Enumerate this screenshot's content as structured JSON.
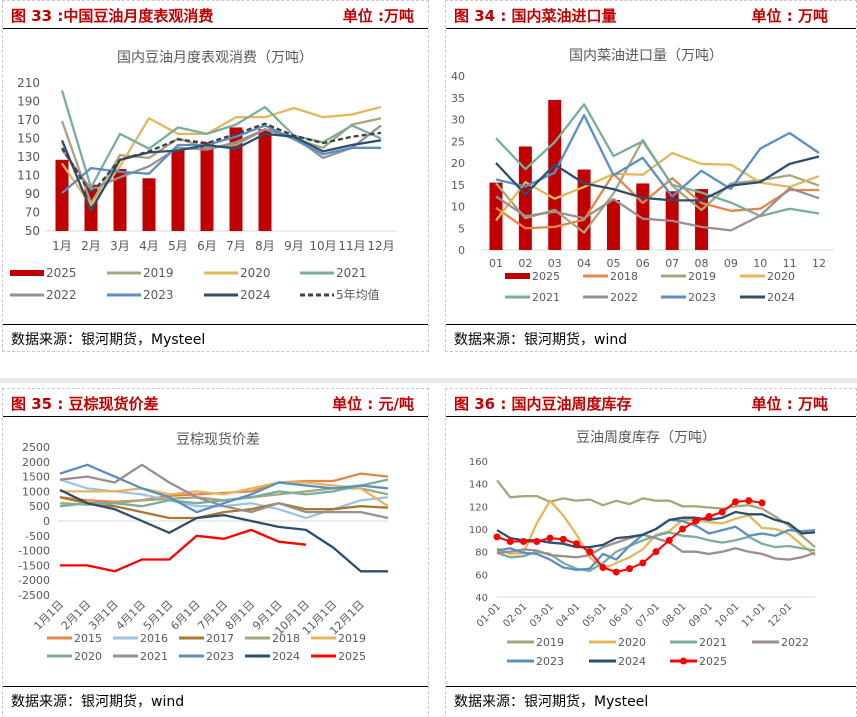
{
  "panels": [
    {
      "title": "图 33 :中国豆油月度表观消费",
      "unit": "单位 :万吨",
      "source": "数据来源：银河期货，Mysteel"
    },
    {
      "title": "图 34 : 国内菜油进口量",
      "unit": "单位 : 万吨",
      "source": "数据来源：银河期货，wind"
    },
    {
      "title": "图 35 : 豆棕现货价差",
      "unit": "单位 : 元/吨",
      "source": "数据来源：银河期货，wind"
    },
    {
      "title": "图 36 : 国内豆油周度库存",
      "unit": "单位 : 万吨",
      "source": "数据来源：银河期货，Mysteel"
    }
  ],
  "chart_data": [
    {
      "type": "bar+line",
      "title": "国内豆油月度表观消费（万吨）",
      "ylim": [
        50,
        210
      ],
      "yticks": [
        50,
        70,
        90,
        110,
        130,
        150,
        170,
        190,
        210
      ],
      "categories": [
        "1月",
        "2月",
        "3月",
        "4月",
        "5月",
        "6月",
        "7月",
        "8月",
        "9月",
        "10月",
        "11月",
        "12月"
      ],
      "series": [
        {
          "name": "2025",
          "kind": "bar",
          "color": "#c00000",
          "values": [
            127,
            100,
            117,
            107,
            137,
            146,
            162,
            160,
            null,
            null,
            null,
            null
          ]
        },
        {
          "name": "2019",
          "color": "#a5a77a",
          "values": [
            169,
            80,
            132,
            129,
            150,
            140,
            143,
            160,
            150,
            140,
            165,
            172
          ]
        },
        {
          "name": "2020",
          "color": "#e3b75a",
          "values": [
            123,
            78,
            120,
            172,
            155,
            155,
            173,
            173,
            183,
            173,
            176,
            184
          ]
        },
        {
          "name": "2021",
          "color": "#79ae9c",
          "values": [
            202,
            97,
            155,
            139,
            162,
            155,
            165,
            184,
            153,
            146,
            164,
            150
          ]
        },
        {
          "name": "2022",
          "color": "#9b8e8e",
          "values": [
            138,
            95,
            108,
            120,
            140,
            138,
            146,
            160,
            152,
            129,
            140,
            164
          ]
        },
        {
          "name": "2023",
          "color": "#5b8fc4",
          "values": [
            91,
            118,
            114,
            112,
            143,
            143,
            152,
            164,
            149,
            133,
            140,
            140
          ]
        },
        {
          "name": "2024",
          "color": "#2d4e6e",
          "values": [
            148,
            72,
            127,
            135,
            137,
            143,
            139,
            155,
            152,
            136,
            143,
            148
          ]
        },
        {
          "name": "5年均值",
          "color": "#404040",
          "dashed": true,
          "values": [
            140,
            90,
            127,
            136,
            149,
            145,
            155,
            166,
            153,
            145,
            152,
            156
          ]
        }
      ],
      "legend": "bottom",
      "grid": false
    },
    {
      "type": "bar+line",
      "title": "国内菜油进口量（万吨）",
      "ylim": [
        0,
        40
      ],
      "yticks": [
        0,
        5,
        10,
        15,
        20,
        25,
        30,
        35,
        40
      ],
      "categories": [
        "01",
        "02",
        "03",
        "04",
        "05",
        "06",
        "07",
        "08",
        "09",
        "10",
        "11",
        "12"
      ],
      "series": [
        {
          "name": "2025",
          "kind": "bar",
          "color": "#c00000",
          "values": [
            15.5,
            23.8,
            34.5,
            18.5,
            11.5,
            15.3,
            13.5,
            14,
            null,
            null,
            null,
            null
          ]
        },
        {
          "name": "2018",
          "color": "#e8844a",
          "values": [
            9.7,
            5,
            5.3,
            7,
            17.5,
            10.8,
            16.5,
            10.8,
            9,
            9.5,
            13.8,
            13.8
          ]
        },
        {
          "name": "2019",
          "color": "#a5a77a",
          "values": [
            15.3,
            7.3,
            9.2,
            4,
            13,
            25.3,
            14.8,
            9.2,
            15.3,
            16,
            17.2,
            14.8
          ]
        },
        {
          "name": "2020",
          "color": "#e3b75a",
          "values": [
            6.8,
            15.6,
            11.8,
            14.5,
            17.5,
            17.3,
            22.3,
            19.8,
            19.6,
            15.5,
            14.5,
            17
          ]
        },
        {
          "name": "2021",
          "color": "#79ae9c",
          "values": [
            25.7,
            18.6,
            24.8,
            33.5,
            21.6,
            25,
            15,
            13.2,
            10.9,
            7.8,
            9.5,
            8.4
          ]
        },
        {
          "name": "2022",
          "color": "#9b8e8e",
          "values": [
            12.3,
            7.8,
            8.8,
            7.3,
            11.7,
            7.2,
            6.7,
            5.3,
            4.5,
            7.9,
            14.2,
            11.9
          ]
        },
        {
          "name": "2023",
          "color": "#5b8fc4",
          "values": [
            16.2,
            14.6,
            17.8,
            31,
            17.2,
            21.2,
            12.3,
            18.2,
            14,
            23.3,
            26.9,
            22.3
          ]
        },
        {
          "name": "2024",
          "color": "#2d4e6e",
          "values": [
            20,
            12.8,
            19.6,
            15.3,
            14,
            12,
            11.4,
            11.4,
            14.8,
            15.6,
            19.8,
            21.5
          ]
        }
      ],
      "legend": "bottom",
      "grid": false
    },
    {
      "type": "line",
      "title": "豆棕现货价差",
      "ylim": [
        -2500,
        2500
      ],
      "yticks": [
        -2500,
        -2000,
        -1500,
        -1000,
        -500,
        0,
        500,
        1000,
        1500,
        2000,
        2500
      ],
      "xticklabels": [
        "1月1日",
        "2月1日",
        "3月1日",
        "4月1日",
        "5月1日",
        "6月1日",
        "7月1日",
        "8月1日",
        "9月1日",
        "10月1日",
        "11月1日",
        "12月1日"
      ],
      "x": [
        "1月1日",
        "2月1日",
        "3月1日",
        "4月1日",
        "5月1日",
        "6月1日",
        "7月1日",
        "8月1日",
        "9月1日",
        "10月1日",
        "11月1日",
        "12月1日",
        "12月31日"
      ],
      "series": [
        {
          "name": "2015",
          "color": "#e8844a",
          "values": [
            800,
            700,
            650,
            700,
            850,
            900,
            950,
            1000,
            1300,
            1350,
            1350,
            1600,
            1500
          ]
        },
        {
          "name": "2016",
          "color": "#9dc3e6",
          "values": [
            1400,
            1100,
            1000,
            900,
            700,
            500,
            500,
            600,
            400,
            100,
            400,
            700,
            800
          ]
        },
        {
          "name": "2017",
          "color": "#a57a2e",
          "values": [
            800,
            600,
            500,
            300,
            100,
            100,
            300,
            400,
            600,
            400,
            400,
            500,
            450
          ]
        },
        {
          "name": "2018",
          "color": "#a5a77a",
          "values": [
            600,
            550,
            600,
            700,
            750,
            800,
            700,
            800,
            900,
            1000,
            1100,
            1100,
            900
          ]
        },
        {
          "name": "2019",
          "color": "#e3b75a",
          "values": [
            1000,
            1000,
            1000,
            1100,
            900,
            1000,
            900,
            1100,
            1300,
            1300,
            1200,
            1100,
            500
          ]
        },
        {
          "name": "2020",
          "color": "#79ae9c",
          "values": [
            500,
            600,
            600,
            500,
            700,
            600,
            700,
            800,
            1000,
            900,
            1000,
            1200,
            1400
          ]
        },
        {
          "name": "2021",
          "color": "#9b8e8e",
          "values": [
            1400,
            1500,
            1300,
            1900,
            1300,
            800,
            500,
            300,
            600,
            300,
            300,
            300,
            100
          ]
        },
        {
          "name": "2023",
          "color": "#5b8fc4",
          "values": [
            1600,
            1900,
            1500,
            1100,
            800,
            300,
            600,
            900,
            1300,
            1200,
            1100,
            1200,
            1100
          ]
        },
        {
          "name": "2024",
          "color": "#2d4e6e",
          "values": [
            1050,
            600,
            400,
            0,
            -400,
            100,
            200,
            0,
            -200,
            -300,
            -900,
            -1700,
            -1700
          ]
        },
        {
          "name": "2025",
          "color": "#ff0000",
          "values": [
            -1500,
            -1500,
            -1700,
            -1300,
            -1300,
            -500,
            -600,
            -300,
            -700,
            -800,
            null,
            null,
            null
          ]
        }
      ],
      "legend": "bottom",
      "grid": false
    },
    {
      "type": "line",
      "title": "豆油周度库存（万吨）",
      "ylim": [
        40,
        160
      ],
      "yticks": [
        40,
        60,
        80,
        100,
        120,
        140,
        160
      ],
      "xticklabels": [
        "01-01",
        "02-01",
        "03-01",
        "04-01",
        "05-01",
        "06-01",
        "07-01",
        "08-01",
        "09-01",
        "10-01",
        "11-01",
        "12-01"
      ],
      "x": [
        "01-01",
        "01-15",
        "02-01",
        "02-15",
        "03-01",
        "03-15",
        "04-01",
        "04-15",
        "05-01",
        "05-15",
        "06-01",
        "06-15",
        "07-01",
        "07-15",
        "08-01",
        "08-15",
        "09-01",
        "09-15",
        "10-01",
        "10-15",
        "11-01",
        "11-15",
        "12-01",
        "12-15",
        "12-31"
      ],
      "series": [
        {
          "name": "2019",
          "color": "#a5a77a",
          "values": [
            143,
            128,
            129,
            129,
            124,
            127,
            125,
            126,
            121,
            125,
            122,
            127,
            125,
            125,
            120,
            120,
            119,
            118,
            120,
            121,
            118,
            111,
            103,
            94,
            84
          ]
        },
        {
          "name": "2020",
          "color": "#e3b75a",
          "values": [
            83,
            78,
            79,
            105,
            125,
            112,
            95,
            75,
            65,
            70,
            75,
            82,
            95,
            98,
            108,
            108,
            106,
            105,
            109,
            112,
            101,
            100,
            96,
            86,
            77
          ]
        },
        {
          "name": "2021",
          "color": "#79ae9c",
          "values": [
            79,
            75,
            76,
            80,
            78,
            70,
            65,
            63,
            70,
            80,
            85,
            90,
            94,
            97,
            94,
            93,
            90,
            88,
            90,
            93,
            87,
            84,
            85,
            83,
            81
          ]
        },
        {
          "name": "2022",
          "color": "#9b8e8e",
          "values": [
            79,
            80,
            82,
            81,
            77,
            76,
            75,
            77,
            84,
            88,
            92,
            95,
            92,
            88,
            80,
            80,
            78,
            80,
            83,
            80,
            78,
            74,
            73,
            75,
            79
          ]
        },
        {
          "name": "2023",
          "color": "#5b8fc4",
          "values": [
            81,
            83,
            79,
            78,
            73,
            66,
            64,
            65,
            78,
            73,
            85,
            95,
            100,
            108,
            107,
            103,
            96,
            99,
            102,
            94,
            96,
            94,
            99,
            98,
            99
          ]
        },
        {
          "name": "2024",
          "color": "#2d4e6e",
          "values": [
            99,
            92,
            90,
            90,
            88,
            87,
            84,
            84,
            86,
            92,
            93,
            95,
            100,
            108,
            110,
            110,
            108,
            110,
            115,
            113,
            113,
            108,
            105,
            96,
            97
          ]
        },
        {
          "name": "2025",
          "color": "#ff0000",
          "markers": true,
          "values": [
            93,
            89,
            89,
            89,
            92,
            91,
            87,
            80,
            66,
            62,
            65,
            70,
            80,
            90,
            100,
            107,
            111,
            115,
            124,
            125,
            123,
            null,
            null,
            null,
            null
          ]
        }
      ],
      "legend": "bottom",
      "grid": false
    }
  ]
}
